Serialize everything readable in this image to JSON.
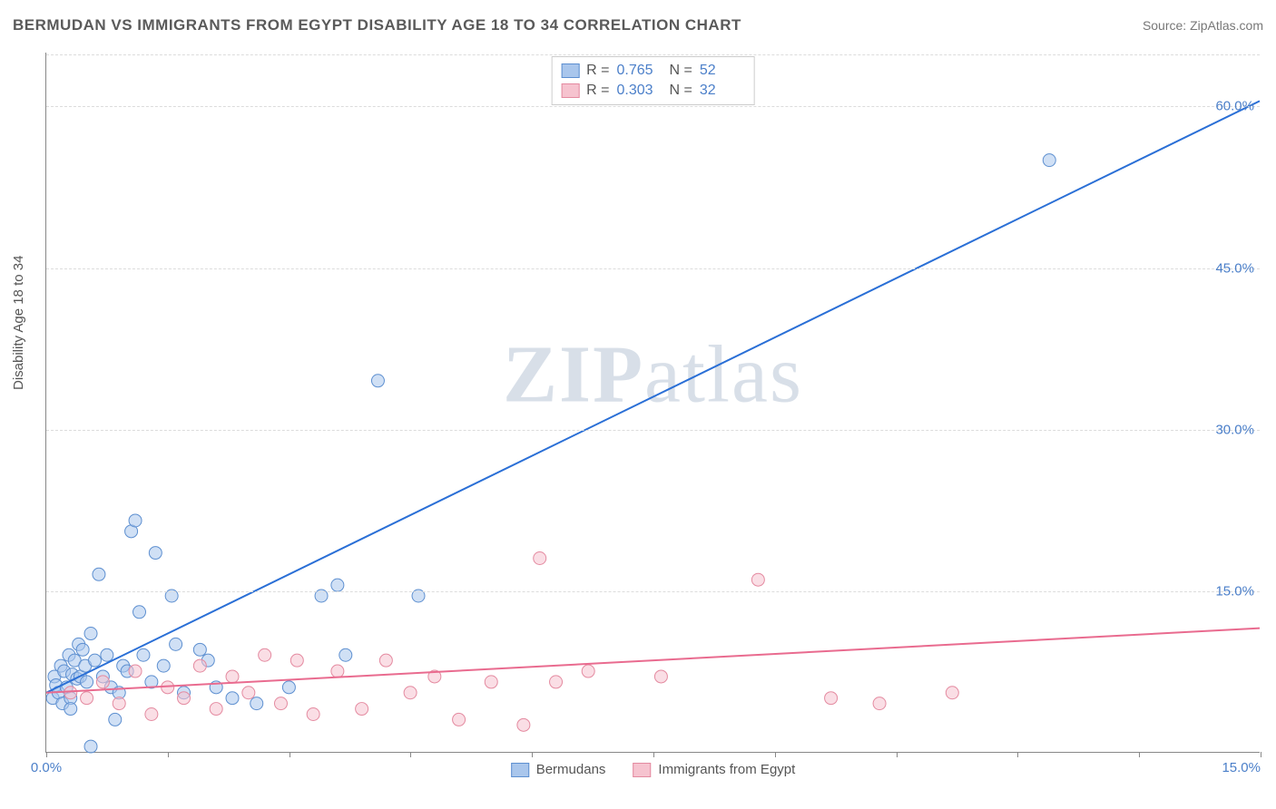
{
  "header": {
    "title": "BERMUDAN VS IMMIGRANTS FROM EGYPT DISABILITY AGE 18 TO 34 CORRELATION CHART",
    "source": "Source: ZipAtlas.com"
  },
  "watermark": {
    "part1": "ZIP",
    "part2": "atlas"
  },
  "chart": {
    "type": "scatter",
    "ylabel": "Disability Age 18 to 34",
    "xlim": [
      0,
      15
    ],
    "ylim": [
      0,
      65
    ],
    "xtick_positions": [
      0,
      1.5,
      3.0,
      4.5,
      6.0,
      7.5,
      9.0,
      10.5,
      12.0,
      13.5,
      15.0
    ],
    "xtick_labels_shown": {
      "0": "0.0%",
      "15": "15.0%"
    },
    "ytick_positions": [
      15,
      30,
      45,
      60
    ],
    "ytick_labels": [
      "15.0%",
      "30.0%",
      "45.0%",
      "60.0%"
    ],
    "background_color": "#ffffff",
    "grid_color": "#dcdcdc",
    "axis_color": "#888888",
    "marker_radius": 7,
    "marker_opacity": 0.55,
    "line_width": 2,
    "series": [
      {
        "name": "Bermudans",
        "color_fill": "#a9c6ec",
        "color_stroke": "#5d8fd0",
        "line_color": "#2a6fd6",
        "R": "0.765",
        "N": "52",
        "trend": {
          "x1": 0,
          "y1": 5.5,
          "x2": 15,
          "y2": 60.5
        },
        "points": [
          [
            0.08,
            5.0
          ],
          [
            0.1,
            7.0
          ],
          [
            0.12,
            6.2
          ],
          [
            0.15,
            5.5
          ],
          [
            0.18,
            8.0
          ],
          [
            0.2,
            4.5
          ],
          [
            0.22,
            7.5
          ],
          [
            0.25,
            6.0
          ],
          [
            0.28,
            9.0
          ],
          [
            0.3,
            5.0
          ],
          [
            0.32,
            7.2
          ],
          [
            0.35,
            8.5
          ],
          [
            0.38,
            6.8
          ],
          [
            0.4,
            10.0
          ],
          [
            0.42,
            7.0
          ],
          [
            0.45,
            9.5
          ],
          [
            0.48,
            8.0
          ],
          [
            0.5,
            6.5
          ],
          [
            0.55,
            11.0
          ],
          [
            0.6,
            8.5
          ],
          [
            0.65,
            16.5
          ],
          [
            0.7,
            7.0
          ],
          [
            0.75,
            9.0
          ],
          [
            0.8,
            6.0
          ],
          [
            0.85,
            3.0
          ],
          [
            0.9,
            5.5
          ],
          [
            0.95,
            8.0
          ],
          [
            1.0,
            7.5
          ],
          [
            1.05,
            20.5
          ],
          [
            1.1,
            21.5
          ],
          [
            1.15,
            13.0
          ],
          [
            1.2,
            9.0
          ],
          [
            1.3,
            6.5
          ],
          [
            1.35,
            18.5
          ],
          [
            1.45,
            8.0
          ],
          [
            1.55,
            14.5
          ],
          [
            1.6,
            10.0
          ],
          [
            1.7,
            5.5
          ],
          [
            1.9,
            9.5
          ],
          [
            2.0,
            8.5
          ],
          [
            2.1,
            6.0
          ],
          [
            2.3,
            5.0
          ],
          [
            2.6,
            4.5
          ],
          [
            3.0,
            6.0
          ],
          [
            3.4,
            14.5
          ],
          [
            3.6,
            15.5
          ],
          [
            3.7,
            9.0
          ],
          [
            4.1,
            34.5
          ],
          [
            4.6,
            14.5
          ],
          [
            0.55,
            0.5
          ],
          [
            12.4,
            55.0
          ],
          [
            0.3,
            4.0
          ]
        ]
      },
      {
        "name": "Immigrants from Egypt",
        "color_fill": "#f6c3cf",
        "color_stroke": "#e48aa0",
        "line_color": "#e96b8f",
        "R": "0.303",
        "N": "32",
        "trend": {
          "x1": 0,
          "y1": 5.5,
          "x2": 15,
          "y2": 11.5
        },
        "points": [
          [
            0.3,
            5.5
          ],
          [
            0.5,
            5.0
          ],
          [
            0.7,
            6.5
          ],
          [
            0.9,
            4.5
          ],
          [
            1.1,
            7.5
          ],
          [
            1.3,
            3.5
          ],
          [
            1.5,
            6.0
          ],
          [
            1.7,
            5.0
          ],
          [
            1.9,
            8.0
          ],
          [
            2.1,
            4.0
          ],
          [
            2.3,
            7.0
          ],
          [
            2.5,
            5.5
          ],
          [
            2.7,
            9.0
          ],
          [
            2.9,
            4.5
          ],
          [
            3.1,
            8.5
          ],
          [
            3.3,
            3.5
          ],
          [
            3.6,
            7.5
          ],
          [
            3.9,
            4.0
          ],
          [
            4.2,
            8.5
          ],
          [
            4.5,
            5.5
          ],
          [
            4.8,
            7.0
          ],
          [
            5.1,
            3.0
          ],
          [
            5.5,
            6.5
          ],
          [
            5.9,
            2.5
          ],
          [
            6.1,
            18.0
          ],
          [
            6.3,
            6.5
          ],
          [
            6.7,
            7.5
          ],
          [
            7.6,
            7.0
          ],
          [
            8.8,
            16.0
          ],
          [
            9.7,
            5.0
          ],
          [
            10.3,
            4.5
          ],
          [
            11.2,
            5.5
          ]
        ]
      }
    ]
  },
  "stats_legend": {
    "R_label": "R  =",
    "N_label": "N  ="
  },
  "bottom_legend": {
    "items": [
      "Bermudans",
      "Immigrants from Egypt"
    ]
  }
}
